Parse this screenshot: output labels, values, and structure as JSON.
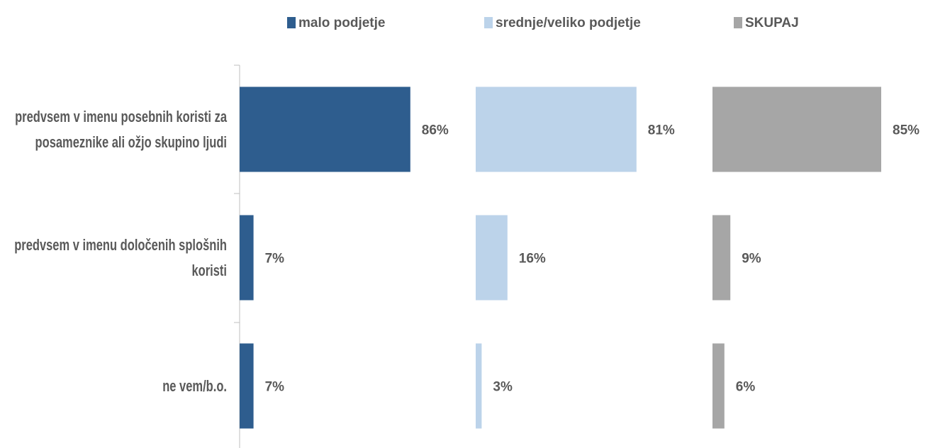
{
  "chart_data": {
    "type": "bar",
    "orientation": "horizontal",
    "categories": [
      "predvsem v imenu posebnih koristi za posameznike ali ožjo skupino ljudi",
      "predvsem v imenu določenih splošnih koristi",
      "ne vem/b.o."
    ],
    "series": [
      {
        "name": "malo podjetje",
        "color": "#2e5d8e",
        "values": [
          86,
          7,
          7
        ],
        "value_labels": [
          "86%",
          "7%",
          "7%"
        ]
      },
      {
        "name": "srednje/veliko podjetje",
        "color": "#bcd3ea",
        "values": [
          81,
          16,
          3
        ],
        "value_labels": [
          "81%",
          "16%",
          "3%"
        ]
      },
      {
        "name": "SKUPAJ",
        "color": "#a6a6a6",
        "values": [
          85,
          9,
          6
        ],
        "value_labels": [
          "85%",
          "9%",
          "6%"
        ]
      }
    ],
    "xlim": [
      0,
      100
    ]
  }
}
